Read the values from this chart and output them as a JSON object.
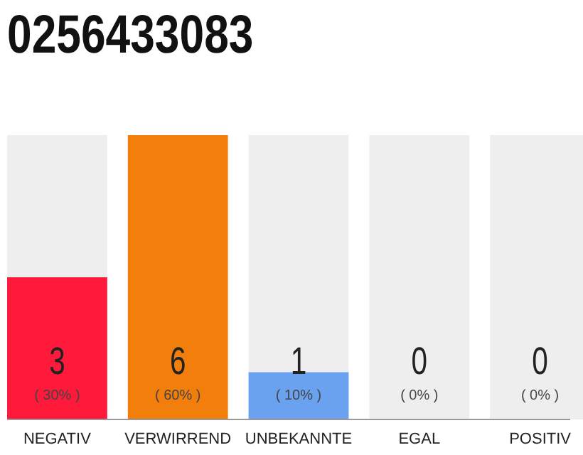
{
  "chart_data": {
    "type": "bar",
    "title": "0256433083",
    "stacked": true,
    "categories": [
      "NEGATIV",
      "VERWIRREND",
      "UNBEKANNTE",
      "EGAL",
      "POSITIV"
    ],
    "series": [
      {
        "colors": [
          "#ff1a3c",
          "#f27e0c",
          "#6aa2ef",
          "#5b9bd5",
          "#5b9bd5"
        ],
        "values": [
          30,
          60,
          10,
          0,
          0
        ],
        "value_labels": [
          "( 30% )",
          "( 60% )",
          "( 10% )",
          null,
          null
        ]
      },
      {
        "color": "#eeeeee",
        "values": [
          30,
          0,
          50,
          60,
          60
        ]
      }
    ],
    "annotations": [
      "3",
      "6",
      "1",
      "0",
      "0",
      {
        "text": "( 0% )",
        "x": "EGAL",
        "y": 0
      },
      {
        "text": "( 0% )",
        "x": "POSITIV",
        "y": 0
      }
    ]
  }
}
